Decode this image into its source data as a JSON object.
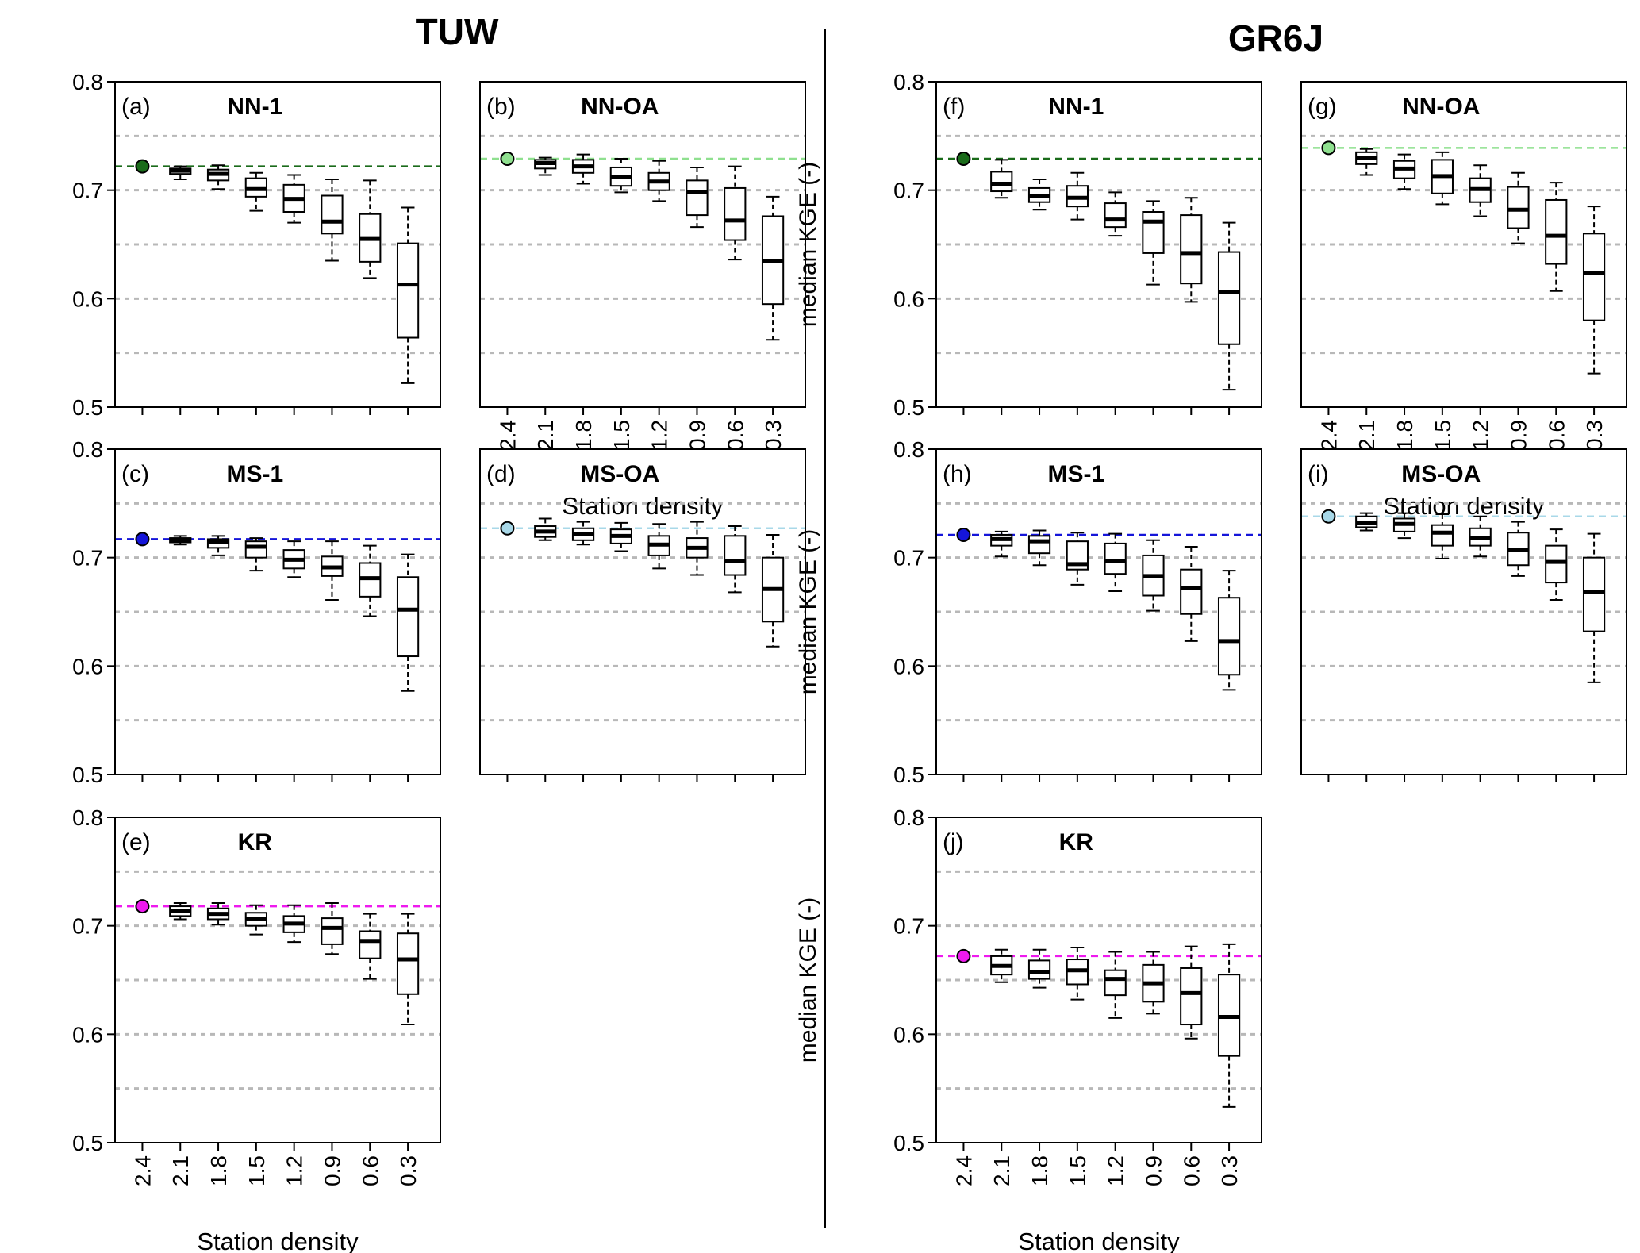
{
  "figure": {
    "left_title": "TUW",
    "right_title": "GR6J"
  },
  "axes_text": {
    "ylabel": "median KGE (-)",
    "xlabel": "Station density",
    "yticks": [
      "0.5",
      "0.6",
      "0.7",
      "0.8"
    ],
    "ytick_values": [
      0.5,
      0.6,
      0.7,
      0.8
    ],
    "gridlines": [
      0.55,
      0.6,
      0.65,
      0.7,
      0.75
    ],
    "categories": [
      "2.4",
      "2.1",
      "1.8",
      "1.5",
      "1.2",
      "0.9",
      "0.6",
      "0.3"
    ],
    "ylim": [
      0.5,
      0.8
    ]
  },
  "chart_data": [
    {
      "type": "box",
      "model": "TUW",
      "letter": "(a)",
      "method": "NN-1",
      "color": "#1a6b1a",
      "ref": 0.722,
      "boxes": [
        {
          "lo": 0.71,
          "q1": 0.715,
          "med": 0.718,
          "q3": 0.72,
          "hi": 0.722
        },
        {
          "lo": 0.701,
          "q1": 0.709,
          "med": 0.715,
          "q3": 0.719,
          "hi": 0.723
        },
        {
          "lo": 0.681,
          "q1": 0.694,
          "med": 0.701,
          "q3": 0.711,
          "hi": 0.716
        },
        {
          "lo": 0.67,
          "q1": 0.68,
          "med": 0.692,
          "q3": 0.705,
          "hi": 0.714
        },
        {
          "lo": 0.635,
          "q1": 0.66,
          "med": 0.671,
          "q3": 0.695,
          "hi": 0.71
        },
        {
          "lo": 0.619,
          "q1": 0.634,
          "med": 0.655,
          "q3": 0.678,
          "hi": 0.709
        },
        {
          "lo": 0.522,
          "q1": 0.564,
          "med": 0.613,
          "q3": 0.651,
          "hi": 0.684
        }
      ]
    },
    {
      "type": "box",
      "model": "TUW",
      "letter": "(b)",
      "method": "NN-OA",
      "color": "#8fe08f",
      "ref": 0.729,
      "boxes": [
        {
          "lo": 0.714,
          "q1": 0.72,
          "med": 0.725,
          "q3": 0.728,
          "hi": 0.73
        },
        {
          "lo": 0.706,
          "q1": 0.716,
          "med": 0.722,
          "q3": 0.728,
          "hi": 0.733
        },
        {
          "lo": 0.698,
          "q1": 0.704,
          "med": 0.712,
          "q3": 0.721,
          "hi": 0.729
        },
        {
          "lo": 0.69,
          "q1": 0.7,
          "med": 0.708,
          "q3": 0.716,
          "hi": 0.727
        },
        {
          "lo": 0.666,
          "q1": 0.677,
          "med": 0.698,
          "q3": 0.709,
          "hi": 0.721
        },
        {
          "lo": 0.636,
          "q1": 0.654,
          "med": 0.672,
          "q3": 0.702,
          "hi": 0.722
        },
        {
          "lo": 0.562,
          "q1": 0.595,
          "med": 0.635,
          "q3": 0.676,
          "hi": 0.694
        }
      ]
    },
    {
      "type": "box",
      "model": "TUW",
      "letter": "(c)",
      "method": "MS-1",
      "color": "#1515d9",
      "ref": 0.717,
      "boxes": [
        {
          "lo": 0.712,
          "q1": 0.714,
          "med": 0.716,
          "q3": 0.718,
          "hi": 0.72
        },
        {
          "lo": 0.702,
          "q1": 0.709,
          "med": 0.714,
          "q3": 0.717,
          "hi": 0.72
        },
        {
          "lo": 0.688,
          "q1": 0.7,
          "med": 0.71,
          "q3": 0.715,
          "hi": 0.718
        },
        {
          "lo": 0.682,
          "q1": 0.69,
          "med": 0.698,
          "q3": 0.707,
          "hi": 0.715
        },
        {
          "lo": 0.661,
          "q1": 0.683,
          "med": 0.691,
          "q3": 0.701,
          "hi": 0.715
        },
        {
          "lo": 0.646,
          "q1": 0.664,
          "med": 0.681,
          "q3": 0.695,
          "hi": 0.711
        },
        {
          "lo": 0.577,
          "q1": 0.609,
          "med": 0.652,
          "q3": 0.682,
          "hi": 0.703
        }
      ]
    },
    {
      "type": "box",
      "model": "TUW",
      "letter": "(d)",
      "method": "MS-OA",
      "color": "#a8d8e8",
      "ref": 0.727,
      "boxes": [
        {
          "lo": 0.716,
          "q1": 0.719,
          "med": 0.724,
          "q3": 0.729,
          "hi": 0.736
        },
        {
          "lo": 0.712,
          "q1": 0.716,
          "med": 0.722,
          "q3": 0.727,
          "hi": 0.733
        },
        {
          "lo": 0.706,
          "q1": 0.713,
          "med": 0.72,
          "q3": 0.726,
          "hi": 0.732
        },
        {
          "lo": 0.69,
          "q1": 0.702,
          "med": 0.712,
          "q3": 0.72,
          "hi": 0.731
        },
        {
          "lo": 0.684,
          "q1": 0.7,
          "med": 0.709,
          "q3": 0.718,
          "hi": 0.733
        },
        {
          "lo": 0.668,
          "q1": 0.684,
          "med": 0.697,
          "q3": 0.72,
          "hi": 0.729
        },
        {
          "lo": 0.618,
          "q1": 0.641,
          "med": 0.671,
          "q3": 0.7,
          "hi": 0.721
        }
      ]
    },
    {
      "type": "box",
      "model": "TUW",
      "letter": "(e)",
      "method": "KR",
      "color": "#ee1aee",
      "ref": 0.718,
      "boxes": [
        {
          "lo": 0.706,
          "q1": 0.709,
          "med": 0.714,
          "q3": 0.718,
          "hi": 0.721
        },
        {
          "lo": 0.701,
          "q1": 0.706,
          "med": 0.711,
          "q3": 0.716,
          "hi": 0.721
        },
        {
          "lo": 0.692,
          "q1": 0.7,
          "med": 0.706,
          "q3": 0.712,
          "hi": 0.719
        },
        {
          "lo": 0.685,
          "q1": 0.694,
          "med": 0.702,
          "q3": 0.709,
          "hi": 0.719
        },
        {
          "lo": 0.674,
          "q1": 0.683,
          "med": 0.698,
          "q3": 0.707,
          "hi": 0.721
        },
        {
          "lo": 0.651,
          "q1": 0.67,
          "med": 0.686,
          "q3": 0.695,
          "hi": 0.711
        },
        {
          "lo": 0.609,
          "q1": 0.637,
          "med": 0.669,
          "q3": 0.693,
          "hi": 0.711
        }
      ]
    },
    {
      "type": "box",
      "model": "GR6J",
      "letter": "(f)",
      "method": "NN-1",
      "color": "#1a6b1a",
      "ref": 0.729,
      "boxes": [
        {
          "lo": 0.693,
          "q1": 0.699,
          "med": 0.706,
          "q3": 0.717,
          "hi": 0.728
        },
        {
          "lo": 0.682,
          "q1": 0.689,
          "med": 0.695,
          "q3": 0.702,
          "hi": 0.71
        },
        {
          "lo": 0.673,
          "q1": 0.685,
          "med": 0.693,
          "q3": 0.704,
          "hi": 0.716
        },
        {
          "lo": 0.658,
          "q1": 0.666,
          "med": 0.673,
          "q3": 0.688,
          "hi": 0.698
        },
        {
          "lo": 0.613,
          "q1": 0.642,
          "med": 0.671,
          "q3": 0.68,
          "hi": 0.69
        },
        {
          "lo": 0.597,
          "q1": 0.614,
          "med": 0.642,
          "q3": 0.677,
          "hi": 0.693
        },
        {
          "lo": 0.516,
          "q1": 0.558,
          "med": 0.606,
          "q3": 0.643,
          "hi": 0.67
        }
      ]
    },
    {
      "type": "box",
      "model": "GR6J",
      "letter": "(g)",
      "method": "NN-OA",
      "color": "#8fe08f",
      "ref": 0.739,
      "boxes": [
        {
          "lo": 0.714,
          "q1": 0.724,
          "med": 0.73,
          "q3": 0.735,
          "hi": 0.738
        },
        {
          "lo": 0.701,
          "q1": 0.711,
          "med": 0.72,
          "q3": 0.727,
          "hi": 0.733
        },
        {
          "lo": 0.687,
          "q1": 0.697,
          "med": 0.713,
          "q3": 0.728,
          "hi": 0.735
        },
        {
          "lo": 0.676,
          "q1": 0.689,
          "med": 0.701,
          "q3": 0.711,
          "hi": 0.723
        },
        {
          "lo": 0.651,
          "q1": 0.665,
          "med": 0.682,
          "q3": 0.703,
          "hi": 0.716
        },
        {
          "lo": 0.607,
          "q1": 0.632,
          "med": 0.658,
          "q3": 0.691,
          "hi": 0.707
        },
        {
          "lo": 0.531,
          "q1": 0.58,
          "med": 0.624,
          "q3": 0.66,
          "hi": 0.685
        }
      ]
    },
    {
      "type": "box",
      "model": "GR6J",
      "letter": "(h)",
      "method": "MS-1",
      "color": "#1515d9",
      "ref": 0.721,
      "boxes": [
        {
          "lo": 0.701,
          "q1": 0.711,
          "med": 0.717,
          "q3": 0.721,
          "hi": 0.724
        },
        {
          "lo": 0.693,
          "q1": 0.704,
          "med": 0.715,
          "q3": 0.72,
          "hi": 0.725
        },
        {
          "lo": 0.675,
          "q1": 0.689,
          "med": 0.694,
          "q3": 0.715,
          "hi": 0.723
        },
        {
          "lo": 0.669,
          "q1": 0.685,
          "med": 0.697,
          "q3": 0.713,
          "hi": 0.722
        },
        {
          "lo": 0.651,
          "q1": 0.665,
          "med": 0.683,
          "q3": 0.702,
          "hi": 0.716
        },
        {
          "lo": 0.623,
          "q1": 0.648,
          "med": 0.672,
          "q3": 0.689,
          "hi": 0.71
        },
        {
          "lo": 0.578,
          "q1": 0.592,
          "med": 0.623,
          "q3": 0.663,
          "hi": 0.688
        }
      ]
    },
    {
      "type": "box",
      "model": "GR6J",
      "letter": "(i)",
      "method": "MS-OA",
      "color": "#a8d8e8",
      "ref": 0.738,
      "boxes": [
        {
          "lo": 0.725,
          "q1": 0.728,
          "med": 0.732,
          "q3": 0.738,
          "hi": 0.741
        },
        {
          "lo": 0.718,
          "q1": 0.724,
          "med": 0.731,
          "q3": 0.736,
          "hi": 0.741
        },
        {
          "lo": 0.699,
          "q1": 0.711,
          "med": 0.723,
          "q3": 0.73,
          "hi": 0.74
        },
        {
          "lo": 0.701,
          "q1": 0.711,
          "med": 0.718,
          "q3": 0.727,
          "hi": 0.738
        },
        {
          "lo": 0.683,
          "q1": 0.693,
          "med": 0.707,
          "q3": 0.723,
          "hi": 0.733
        },
        {
          "lo": 0.661,
          "q1": 0.677,
          "med": 0.696,
          "q3": 0.711,
          "hi": 0.726
        },
        {
          "lo": 0.585,
          "q1": 0.632,
          "med": 0.668,
          "q3": 0.7,
          "hi": 0.722
        }
      ]
    },
    {
      "type": "box",
      "model": "GR6J",
      "letter": "(j)",
      "method": "KR",
      "color": "#ee1aee",
      "ref": 0.672,
      "boxes": [
        {
          "lo": 0.648,
          "q1": 0.655,
          "med": 0.663,
          "q3": 0.672,
          "hi": 0.678
        },
        {
          "lo": 0.643,
          "q1": 0.651,
          "med": 0.657,
          "q3": 0.668,
          "hi": 0.678
        },
        {
          "lo": 0.632,
          "q1": 0.646,
          "med": 0.659,
          "q3": 0.669,
          "hi": 0.68
        },
        {
          "lo": 0.615,
          "q1": 0.636,
          "med": 0.651,
          "q3": 0.659,
          "hi": 0.676
        },
        {
          "lo": 0.619,
          "q1": 0.63,
          "med": 0.647,
          "q3": 0.664,
          "hi": 0.676
        },
        {
          "lo": 0.596,
          "q1": 0.609,
          "med": 0.638,
          "q3": 0.661,
          "hi": 0.681
        },
        {
          "lo": 0.533,
          "q1": 0.58,
          "med": 0.616,
          "q3": 0.655,
          "hi": 0.683
        }
      ]
    }
  ]
}
